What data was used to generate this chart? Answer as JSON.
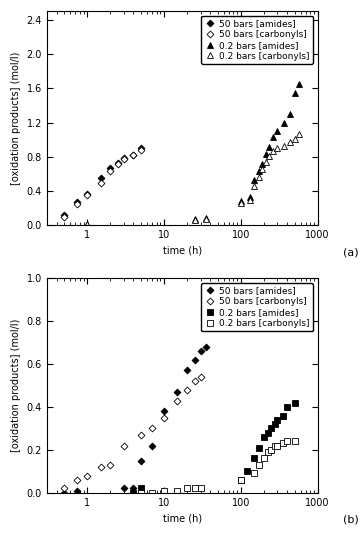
{
  "panel_a": {
    "ylabel": "[oxidation products] (mol/l)",
    "xlabel": "time (h)",
    "ylim": [
      0,
      2.5
    ],
    "xlim": [
      0.3,
      1000
    ],
    "yticks": [
      0.0,
      0.4,
      0.8,
      1.2,
      1.6,
      2.0,
      2.4
    ],
    "s50_amides_x": [
      0.5,
      0.75,
      1.0,
      1.5,
      2.0,
      2.5,
      3.0,
      4.0,
      5.0
    ],
    "s50_amides_y": [
      0.12,
      0.27,
      0.37,
      0.55,
      0.67,
      0.73,
      0.79,
      0.82,
      0.9
    ],
    "s50_carbonyls_x": [
      0.5,
      0.75,
      1.0,
      1.5,
      2.0,
      2.5,
      3.0,
      4.0,
      5.0
    ],
    "s50_carbonyls_y": [
      0.1,
      0.25,
      0.35,
      0.5,
      0.63,
      0.72,
      0.77,
      0.82,
      0.88
    ],
    "s02_amides_x": [
      1.0,
      25.0,
      35.0,
      100,
      130,
      150,
      170,
      190,
      210,
      230,
      260,
      300,
      360,
      430,
      510,
      580
    ],
    "s02_amides_y": [
      0.02,
      0.07,
      0.09,
      0.28,
      0.33,
      0.53,
      0.63,
      0.72,
      0.83,
      0.92,
      1.03,
      1.1,
      1.2,
      1.3,
      1.55,
      1.65
    ],
    "s02_carbonyls_x": [
      1.0,
      25.0,
      35.0,
      100,
      130,
      150,
      170,
      190,
      210,
      230,
      260,
      300,
      360,
      430,
      510,
      580
    ],
    "s02_carbonyls_y": [
      0.02,
      0.06,
      0.07,
      0.26,
      0.3,
      0.46,
      0.57,
      0.66,
      0.74,
      0.81,
      0.87,
      0.9,
      0.93,
      0.97,
      1.01,
      1.07
    ]
  },
  "panel_b": {
    "ylabel": "[oxidation products] (mol/l)",
    "xlabel": "time (h)",
    "ylim": [
      0,
      1.0
    ],
    "xlim": [
      0.3,
      1000
    ],
    "yticks": [
      0.0,
      0.2,
      0.4,
      0.6,
      0.8,
      1.0
    ],
    "s50_amides_x": [
      0.5,
      0.75,
      3.0,
      4.0,
      5.0,
      7.0,
      10.0,
      15.0,
      20.0,
      25.0,
      30.0,
      35.0
    ],
    "s50_amides_y": [
      0.0,
      0.01,
      0.02,
      0.02,
      0.15,
      0.22,
      0.38,
      0.47,
      0.57,
      0.62,
      0.66,
      0.68
    ],
    "s50_carbonyls_x": [
      0.5,
      0.75,
      1.0,
      1.5,
      2.0,
      3.0,
      5.0,
      7.0,
      10.0,
      15.0,
      20.0,
      25.0,
      30.0
    ],
    "s50_carbonyls_y": [
      0.02,
      0.06,
      0.08,
      0.12,
      0.13,
      0.22,
      0.27,
      0.3,
      0.35,
      0.43,
      0.48,
      0.52,
      0.54
    ],
    "s02_amides_x": [
      4.0,
      5.0,
      100,
      120,
      150,
      175,
      200,
      225,
      250,
      275,
      300,
      350,
      400,
      500
    ],
    "s02_amides_y": [
      0.0,
      0.02,
      0.06,
      0.1,
      0.16,
      0.21,
      0.26,
      0.28,
      0.3,
      0.32,
      0.34,
      0.36,
      0.4,
      0.42
    ],
    "s02_carbonyls_x": [
      5.0,
      7.0,
      10.0,
      15.0,
      20.0,
      25.0,
      30.0,
      100,
      150,
      175,
      200,
      225,
      250,
      275,
      300,
      350,
      400,
      500
    ],
    "s02_carbonyls_y": [
      0.0,
      0.0,
      0.01,
      0.01,
      0.02,
      0.02,
      0.02,
      0.06,
      0.09,
      0.13,
      0.16,
      0.19,
      0.2,
      0.22,
      0.22,
      0.23,
      0.24,
      0.24
    ]
  },
  "legend_labels": [
    "50 bars [amides]",
    "50 bars [carbonyls]",
    "0.2 bars [amides]",
    "0.2 bars [carbonyls]"
  ],
  "font_size": 7,
  "marker_size": 3.5,
  "tick_label_size": 7
}
